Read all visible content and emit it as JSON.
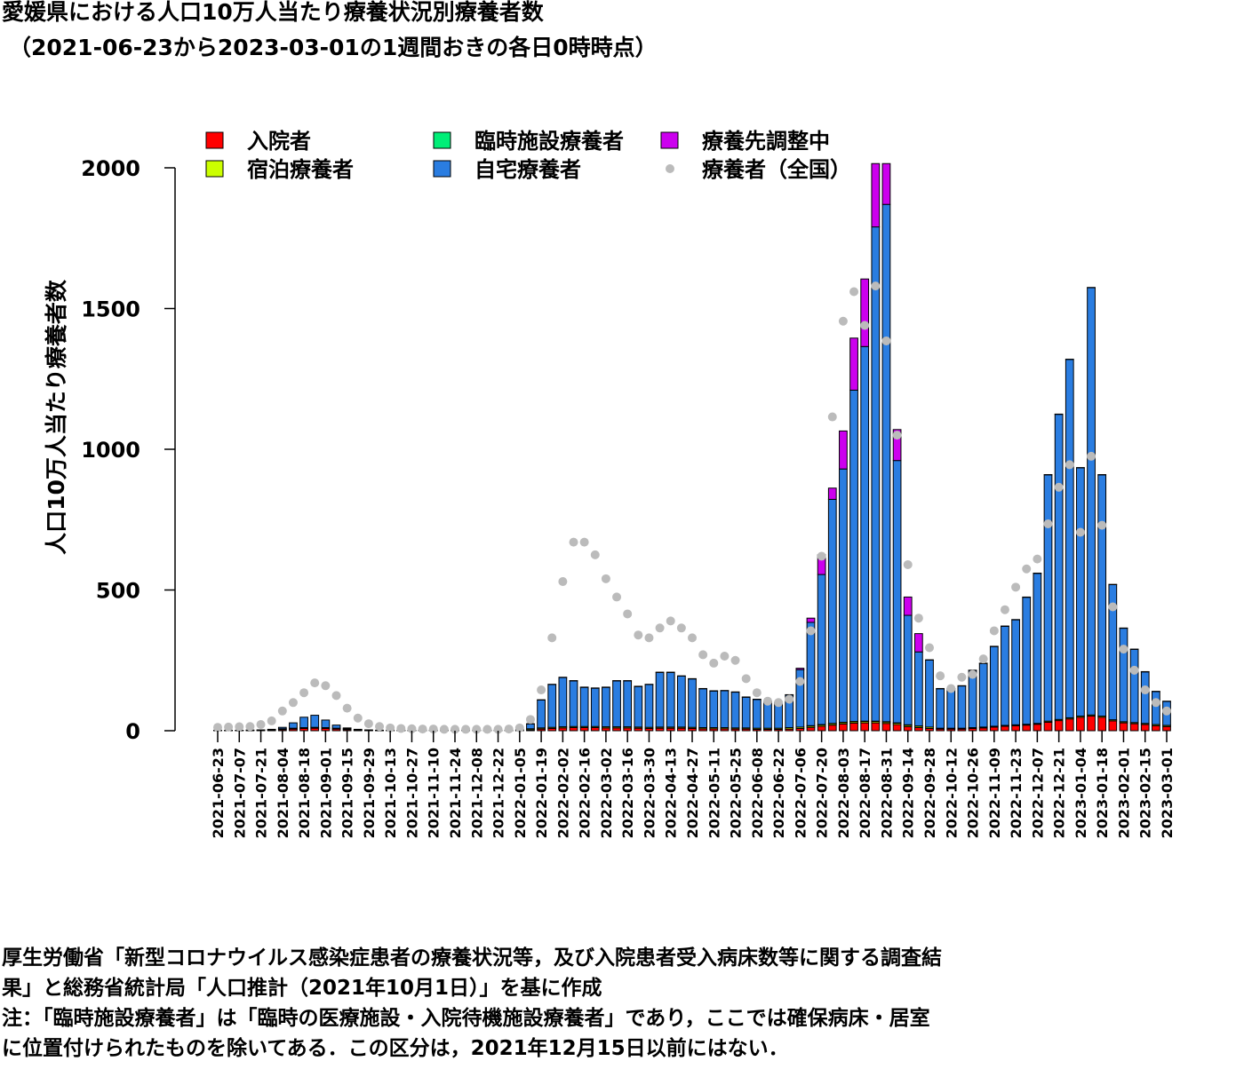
{
  "chart_data": {
    "type": "bar",
    "stacked": true,
    "title": "愛媛県における人口10万人当たり療養状況別療養者数",
    "subtitle": "（2021-06-23から2023-03-01の1週間おきの各日0時時点）",
    "y_label": "人口10万人当たり療養者数",
    "notes": [
      "厚生労働省「新型コロナウイルス感染症患者の療養状況等，及び入院患者受入病床数等に関する調査結",
      "果」と総務省統計局「人口推計（2021年10月1日）」を基に作成",
      "注：「臨時施設療養者」は「臨時の医療施設・入院待機施設療養者」であり，ここでは確保病床・居室",
      "に位置付けられたものを除いてある．この区分は，2021年12月15日以前にはない．"
    ],
    "categories": [
      "2021-06-23",
      null,
      "2021-07-07",
      null,
      "2021-07-21",
      null,
      "2021-08-04",
      null,
      "2021-08-18",
      null,
      "2021-09-01",
      null,
      "2021-09-15",
      null,
      "2021-09-29",
      null,
      "2021-10-13",
      null,
      "2021-10-27",
      null,
      "2021-11-10",
      null,
      "2021-11-24",
      null,
      "2021-12-08",
      null,
      "2021-12-22",
      null,
      "2022-01-05",
      null,
      "2022-01-19",
      null,
      "2022-02-02",
      null,
      "2022-02-16",
      null,
      "2022-03-02",
      null,
      "2022-03-16",
      null,
      "2022-03-30",
      null,
      "2022-04-13",
      null,
      "2022-04-27",
      null,
      "2022-05-11",
      null,
      "2022-05-25",
      null,
      "2022-06-08",
      null,
      "2022-06-22",
      null,
      "2022-07-06",
      null,
      "2022-07-20",
      null,
      "2022-08-03",
      null,
      "2022-08-17",
      null,
      "2022-08-31",
      null,
      "2022-09-14",
      null,
      "2022-09-28",
      null,
      "2022-10-12",
      null,
      "2022-10-26",
      null,
      "2022-11-09",
      null,
      "2022-11-23",
      null,
      "2022-12-07",
      null,
      "2022-12-21",
      null,
      "2023-01-04",
      null,
      "2023-01-18",
      null,
      "2023-02-01",
      null,
      "2023-02-15",
      null,
      "2023-03-01"
    ],
    "series": [
      {
        "name": "入院者",
        "color": "#ff0000",
        "values": [
          0.5,
          0.5,
          0.5,
          1,
          1,
          2,
          4,
          6,
          8,
          9,
          8,
          6,
          4,
          2,
          1,
          0.5,
          0.5,
          0.5,
          0.5,
          0.5,
          0.5,
          0.5,
          0.5,
          0.5,
          0.5,
          0.5,
          0.5,
          0.5,
          0.5,
          3,
          6,
          8,
          10,
          11,
          11,
          11,
          10,
          10,
          10,
          9,
          8,
          9,
          9,
          9,
          8,
          7,
          7,
          7,
          6,
          6,
          5,
          5,
          5,
          6,
          8,
          12,
          16,
          20,
          24,
          27,
          28,
          28,
          26,
          22,
          15,
          11,
          8,
          6,
          6,
          6,
          8,
          10,
          13,
          16,
          18,
          20,
          23,
          30,
          36,
          42,
          48,
          52,
          48,
          35,
          28,
          25,
          22,
          18,
          15
        ]
      },
      {
        "name": "宿泊療養者",
        "color": "#ccff00",
        "values": [
          0.5,
          0.5,
          0.5,
          0.5,
          0.5,
          0.5,
          3,
          3,
          3,
          3,
          3,
          3,
          3,
          0.5,
          0.5,
          0.5,
          0.5,
          0.5,
          0.5,
          0.5,
          0.5,
          0.5,
          0.5,
          0.5,
          0.5,
          0.5,
          0.5,
          0.5,
          0.5,
          4,
          4,
          4,
          4,
          4,
          4,
          4,
          4,
          4,
          4,
          4,
          4,
          4,
          4,
          4,
          4,
          4,
          4,
          4,
          4,
          4,
          4,
          4,
          4,
          5,
          5,
          5,
          5,
          5,
          5,
          5,
          5,
          5,
          5,
          5,
          5,
          5,
          5,
          3,
          3,
          3,
          3,
          3,
          3,
          3,
          3,
          3,
          3,
          4,
          4,
          4,
          4,
          4,
          4,
          4,
          4,
          4,
          4,
          4,
          4
        ]
      },
      {
        "name": "臨時施設療養者",
        "color": "#00ee77",
        "values": [
          null,
          null,
          null,
          null,
          null,
          null,
          null,
          null,
          null,
          null,
          null,
          null,
          null,
          null,
          null,
          null,
          null,
          null,
          null,
          null,
          null,
          null,
          null,
          null,
          null,
          null,
          0,
          0,
          0,
          0,
          0,
          0,
          0,
          0,
          0,
          0,
          0,
          0,
          0,
          0,
          0,
          0,
          0,
          0,
          0,
          0,
          0,
          0,
          0,
          0,
          0,
          0,
          0,
          0,
          0,
          1,
          1,
          1,
          1,
          1,
          1,
          1,
          1,
          1,
          1,
          1,
          0,
          0,
          0,
          0,
          0,
          0,
          0,
          0,
          0,
          0,
          0,
          0,
          0,
          0,
          0,
          0,
          0,
          0,
          0,
          0,
          0,
          0,
          0
        ]
      },
      {
        "name": "自宅療養者",
        "color": "#2a7de1",
        "values": [
          0.5,
          0.5,
          0.5,
          1,
          1.5,
          2.5,
          5,
          19,
          37,
          43,
          27,
          11,
          3,
          2.5,
          1.5,
          1,
          0.5,
          0.5,
          0.5,
          0.5,
          0.5,
          0.5,
          0.5,
          0.5,
          0.5,
          0.5,
          0.5,
          0.5,
          4,
          17,
          99,
          152,
          175,
          162,
          139,
          136,
          140,
          163,
          163,
          144,
          152,
          194,
          194,
          181,
          172,
          138,
          130,
          131,
          127,
          109,
          102,
          95,
          90,
          116,
          204,
          367,
          533,
          796,
          900,
          1177,
          1331,
          1756,
          1838,
          932,
          389,
          263,
          238,
          140,
          140,
          150,
          203,
          226,
          283,
          352,
          373,
          451,
          533,
          875,
          1084,
          1273,
          882,
          1518,
          857,
          480,
          332,
          260,
          183,
          117,
          85
        ]
      },
      {
        "name": "療養先調整中",
        "color": "#cc00ee",
        "values": [
          0,
          0,
          0,
          0,
          0,
          0,
          0,
          0,
          0,
          0,
          0,
          0,
          0,
          0,
          0,
          0,
          0,
          0,
          0,
          0,
          0,
          0,
          0,
          0,
          0,
          0,
          0,
          0,
          0,
          1,
          1,
          1,
          1,
          1,
          1,
          1,
          1,
          1,
          1,
          1,
          1,
          1,
          1,
          1,
          1,
          1,
          1,
          1,
          1,
          1,
          1,
          1,
          1,
          1,
          5,
          15,
          70,
          40,
          135,
          185,
          240,
          225,
          145,
          110,
          65,
          65,
          1,
          1,
          1,
          1,
          1,
          1,
          1,
          1,
          1,
          1,
          1,
          1,
          1,
          1,
          1,
          1,
          1,
          1,
          1,
          1,
          1,
          1,
          1
        ]
      }
    ],
    "points": {
      "name": "療養者（全国）",
      "color": "#bbbbbb",
      "values": [
        12,
        13,
        14,
        15,
        22,
        35,
        70,
        100,
        135,
        170,
        160,
        125,
        80,
        45,
        25,
        15,
        10,
        8,
        7,
        6,
        6,
        5,
        5,
        5,
        5,
        5,
        5,
        6,
        10,
        40,
        145,
        330,
        530,
        670,
        670,
        625,
        540,
        475,
        415,
        340,
        330,
        365,
        390,
        365,
        330,
        270,
        240,
        265,
        250,
        185,
        135,
        105,
        100,
        112,
        175,
        355,
        620,
        1115,
        1455,
        1560,
        1440,
        1580,
        1385,
        1050,
        590,
        400,
        295,
        195,
        150,
        190,
        200,
        255,
        355,
        430,
        510,
        575,
        610,
        735,
        865,
        945,
        705,
        975,
        730,
        440,
        290,
        215,
        145,
        100,
        70
      ]
    },
    "ylim": [
      0,
      2000
    ],
    "yticks": [
      0,
      500,
      1000,
      1500,
      2000
    ]
  }
}
